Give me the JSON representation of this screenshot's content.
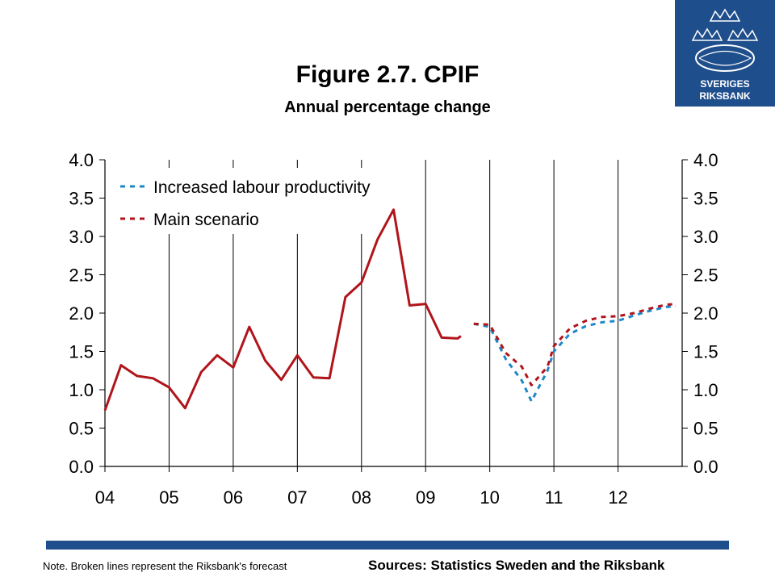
{
  "title": "Figure 2.7. CPIF",
  "subtitle": "Annual percentage change",
  "logo": {
    "line1": "SVERIGES",
    "line2": "RIKSBANK",
    "color": "#1f4e8c"
  },
  "note": "Note. Broken lines represent the Riksbank's forecast",
  "sources": "Sources: Statistics Sweden and the Riksbank",
  "colors": {
    "main": "#b0151b",
    "productivity": "#1f87c8",
    "bar": "#1f4e8c",
    "grid": "#000000"
  },
  "chart_data": {
    "type": "line",
    "y_ticks": [
      "0.0",
      "0.5",
      "1.0",
      "1.5",
      "2.0",
      "2.5",
      "3.0",
      "3.5",
      "4.0"
    ],
    "x_ticks": [
      "04",
      "05",
      "06",
      "07",
      "08",
      "09",
      "10",
      "11",
      "12"
    ],
    "x_tick_positions": [
      2004,
      2005,
      2006,
      2007,
      2008,
      2009,
      2010,
      2011,
      2012
    ],
    "ylim": [
      0,
      4
    ],
    "xlim": [
      2004,
      2013
    ],
    "grid": "vertical",
    "legend_position": "top-left",
    "series": [
      {
        "name": "",
        "style": "solid",
        "color_key": "main",
        "points": [
          [
            2004.0,
            0.73
          ],
          [
            2004.25,
            1.32
          ],
          [
            2004.5,
            1.18
          ],
          [
            2004.75,
            1.15
          ],
          [
            2005.0,
            1.03
          ],
          [
            2005.25,
            0.76
          ],
          [
            2005.5,
            1.23
          ],
          [
            2005.75,
            1.45
          ],
          [
            2006.0,
            1.29
          ],
          [
            2006.25,
            1.82
          ],
          [
            2006.5,
            1.38
          ],
          [
            2006.75,
            1.13
          ],
          [
            2007.0,
            1.45
          ],
          [
            2007.25,
            1.16
          ],
          [
            2007.5,
            1.15
          ],
          [
            2007.75,
            2.21
          ],
          [
            2008.0,
            2.4
          ],
          [
            2008.25,
            2.96
          ],
          [
            2008.5,
            3.35
          ],
          [
            2008.75,
            2.1
          ],
          [
            2009.0,
            2.12
          ],
          [
            2009.25,
            1.68
          ],
          [
            2009.5,
            1.67
          ],
          [
            2009.55,
            1.7
          ]
        ]
      },
      {
        "name": "Increased labour productivity",
        "style": "dashed",
        "color_key": "productivity",
        "points": [
          [
            2009.75,
            1.86
          ],
          [
            2010.0,
            1.82
          ],
          [
            2010.25,
            1.4
          ],
          [
            2010.5,
            1.12
          ],
          [
            2010.65,
            0.85
          ],
          [
            2010.9,
            1.25
          ],
          [
            2011.0,
            1.5
          ],
          [
            2011.25,
            1.73
          ],
          [
            2011.5,
            1.83
          ],
          [
            2011.75,
            1.88
          ],
          [
            2012.0,
            1.9
          ],
          [
            2012.25,
            1.97
          ],
          [
            2012.5,
            2.03
          ],
          [
            2012.75,
            2.08
          ],
          [
            2012.9,
            2.09
          ]
        ]
      },
      {
        "name": "Main scenario",
        "style": "dashed",
        "color_key": "main",
        "points": [
          [
            2009.75,
            1.86
          ],
          [
            2010.0,
            1.85
          ],
          [
            2010.25,
            1.48
          ],
          [
            2010.5,
            1.3
          ],
          [
            2010.65,
            1.06
          ],
          [
            2010.9,
            1.3
          ],
          [
            2011.0,
            1.57
          ],
          [
            2011.25,
            1.8
          ],
          [
            2011.5,
            1.9
          ],
          [
            2011.75,
            1.95
          ],
          [
            2012.0,
            1.96
          ],
          [
            2012.25,
            2.0
          ],
          [
            2012.5,
            2.06
          ],
          [
            2012.75,
            2.11
          ],
          [
            2012.9,
            2.12
          ]
        ]
      }
    ]
  }
}
